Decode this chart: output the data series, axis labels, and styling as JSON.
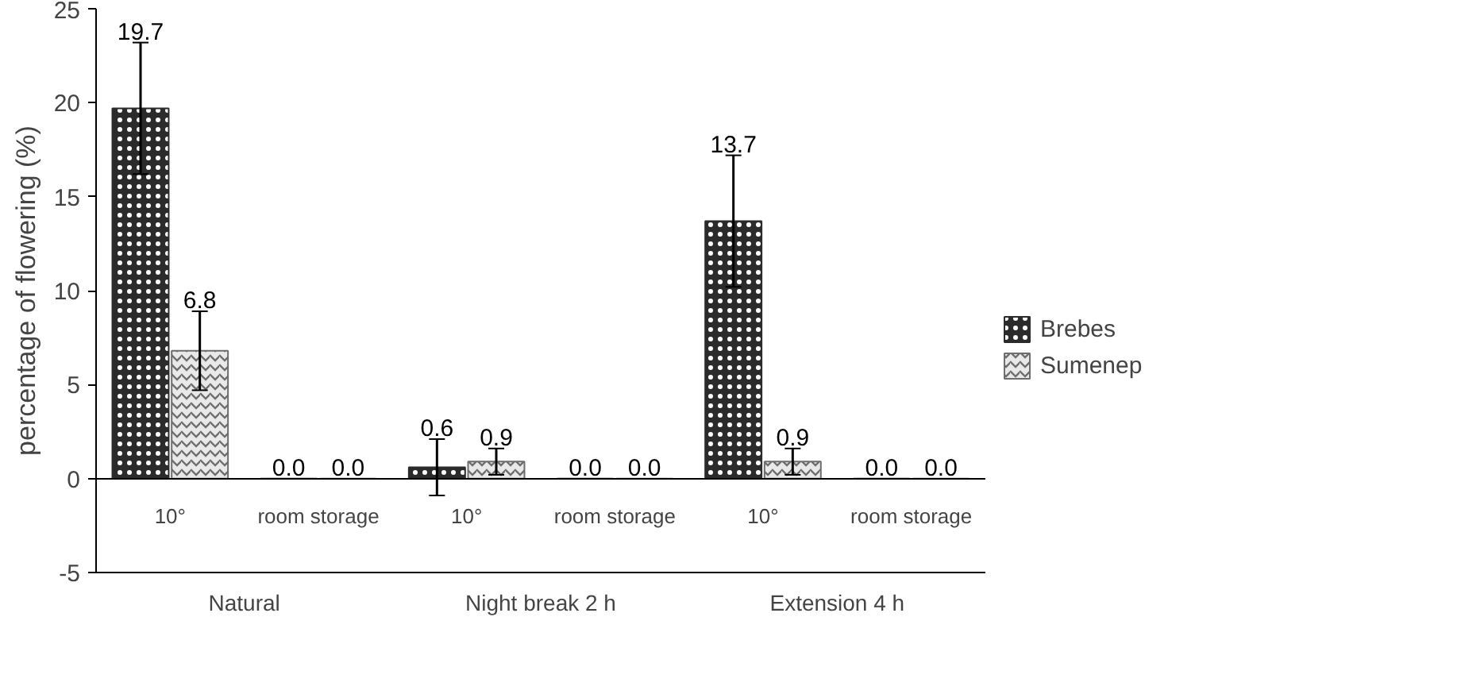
{
  "chart_data": {
    "type": "bar",
    "ylabel": "percentage of flowering (%)",
    "categories": [
      "10°",
      "room storage",
      "10°",
      "room storage",
      "10°",
      "room storage"
    ],
    "annotations": [
      "Natural",
      "Night break 2 h",
      "Extension 4 h"
    ],
    "series": [
      {
        "name": "Brebes",
        "color": "#2b2b2b",
        "values": [
          19.7,
          0,
          0.6,
          0,
          13.7,
          0
        ],
        "errors": [
          3.5,
          null,
          1.5,
          null,
          3.5,
          null
        ],
        "value_labels": [
          "19.7",
          "0.0",
          "0.6",
          "0.0",
          "13.7",
          "0.0"
        ]
      },
      {
        "name": "Sumenep",
        "color": "#6e6e6e",
        "values": [
          6.8,
          0,
          0.9,
          0,
          0.9,
          0
        ],
        "errors": [
          2.1,
          null,
          0.7,
          null,
          0.7,
          null
        ],
        "value_labels": [
          "6.8",
          "0.0",
          "0.9",
          "0.0",
          "0.9",
          "0.0"
        ]
      }
    ],
    "ylim": [
      -5,
      25
    ],
    "yticks": [
      -5,
      0,
      5,
      10,
      15,
      20,
      25
    ],
    "grid": false,
    "legend": "right"
  }
}
